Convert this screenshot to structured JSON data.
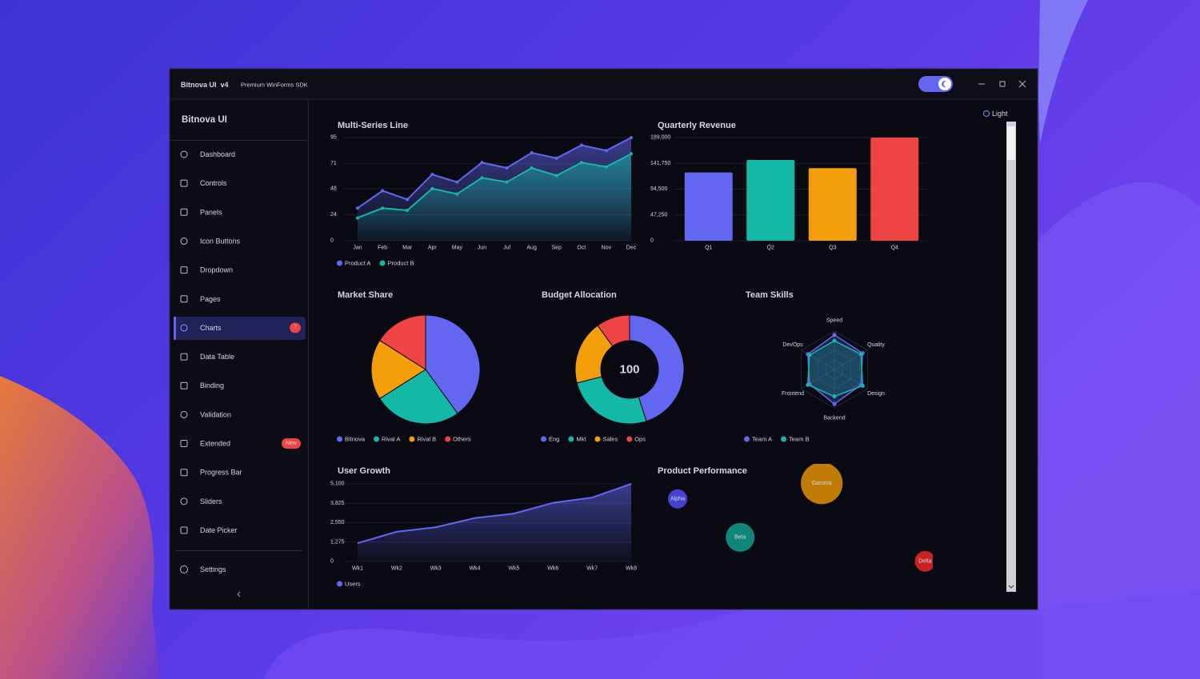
{
  "window": {
    "title": "Bitnova UI  v4",
    "subtitle": "Premium WinForms SDK",
    "theme_toggle": "Light"
  },
  "sidebar": {
    "title": "Bitnova UI",
    "items": [
      {
        "label": "Dashboard"
      },
      {
        "label": "Controls"
      },
      {
        "label": "Panels"
      },
      {
        "label": "Icon Buttons"
      },
      {
        "label": "Dropdown"
      },
      {
        "label": "Pages"
      },
      {
        "label": "Charts",
        "badge": "7",
        "active": true
      },
      {
        "label": "Data Table"
      },
      {
        "label": "Binding"
      },
      {
        "label": "Validation"
      },
      {
        "label": "Extended",
        "badge": "New"
      },
      {
        "label": "Progress Bar"
      },
      {
        "label": "Sliders"
      },
      {
        "label": "Date Picker"
      }
    ],
    "footer": {
      "label": "Settings"
    }
  },
  "chart_data": [
    {
      "type": "line",
      "title": "Multi-Series Line",
      "categories": [
        "Jan",
        "Feb",
        "Mar",
        "Apr",
        "May",
        "Jun",
        "Jul",
        "Aug",
        "Sep",
        "Oct",
        "Nov",
        "Dec"
      ],
      "series": [
        {
          "name": "Product A",
          "color": "#6366f1",
          "values": [
            30,
            46,
            38,
            61,
            54,
            72,
            67,
            81,
            76,
            88,
            83,
            95
          ]
        },
        {
          "name": "Product B",
          "color": "#14b8a6",
          "values": [
            21,
            30,
            28,
            48,
            43,
            58,
            54,
            67,
            60,
            72,
            68,
            80
          ]
        }
      ],
      "ylim": [
        0,
        95
      ],
      "yticks": [
        0,
        24,
        48,
        71,
        95
      ],
      "grid": true,
      "markers": true
    },
    {
      "type": "bar",
      "title": "Quarterly Revenue",
      "categories": [
        "Q1",
        "Q2",
        "Q3",
        "Q4"
      ],
      "values": [
        125000,
        148000,
        133000,
        189000
      ],
      "colors": [
        "#6366f1",
        "#14b8a6",
        "#f59e0b",
        "#ef4444"
      ],
      "ylim": [
        0,
        189000
      ],
      "yticks": [
        0,
        {
          "value": 47250,
          "label": "47,250"
        },
        {
          "value": 94500,
          "label": "94,500"
        },
        {
          "value": 141750,
          "label": "141,750"
        },
        {
          "value": 189000,
          "label": "189,000"
        }
      ],
      "grid": true
    },
    {
      "type": "pie",
      "title": "Market Share",
      "categories": [
        "Bitnova",
        "Rival A",
        "Rival B",
        "Others"
      ],
      "values": [
        40,
        26,
        18,
        16
      ],
      "colors": [
        "#6366f1",
        "#14b8a6",
        "#f59e0b",
        "#ef4444"
      ]
    },
    {
      "type": "donut",
      "title": "Budget Allocation",
      "categories": [
        "Eng",
        "Mkt",
        "Sales",
        "Ops"
      ],
      "values": [
        45,
        26,
        19,
        10
      ],
      "colors": [
        "#6366f1",
        "#14b8a6",
        "#f59e0b",
        "#ef4444"
      ],
      "center_value": 100
    },
    {
      "type": "radar",
      "title": "Team Skills",
      "categories": [
        "Speed",
        "Quality",
        "Design",
        "Backend",
        "Frontend",
        "DevOps"
      ],
      "series": [
        {
          "name": "Team A",
          "color": "#6366f1",
          "values": [
            90,
            85,
            80,
            90,
            75,
            80
          ]
        },
        {
          "name": "Team B",
          "color": "#14b8a6",
          "values": [
            75,
            80,
            85,
            70,
            80,
            75
          ]
        }
      ],
      "rlim": [
        0,
        100
      ]
    },
    {
      "type": "area",
      "title": "User Growth",
      "categories": [
        "Wk1",
        "Wk2",
        "Wk3",
        "Wk4",
        "Wk5",
        "Wk6",
        "Wk7",
        "Wk8"
      ],
      "series": [
        {
          "name": "Users",
          "color": "#6366f1",
          "values": [
            1200,
            1950,
            2250,
            2850,
            3150,
            3850,
            4200,
            5100
          ]
        }
      ],
      "ylim": [
        0,
        5100
      ],
      "yticks": [
        0,
        {
          "value": 1275,
          "label": "1,275"
        },
        {
          "value": 2550,
          "label": "2,550"
        },
        {
          "value": 3825,
          "label": "3,825"
        },
        {
          "value": 5100,
          "label": "5,100"
        }
      ],
      "grid": true
    },
    {
      "type": "bubble",
      "title": "Product Performance",
      "points": [
        {
          "name": "Alpha",
          "color": "#4f46e5",
          "x": 5,
          "y": 74,
          "size": 40
        },
        {
          "name": "Beta",
          "color": "#0f9488",
          "x": 28,
          "y": 37,
          "size": 60
        },
        {
          "name": "Gamma",
          "color": "#d48806",
          "x": 58,
          "y": 89,
          "size": 87
        },
        {
          "name": "Delta",
          "color": "#dc2626",
          "x": 96,
          "y": 14,
          "size": 43
        }
      ],
      "xlim": [
        0,
        100
      ],
      "ylim": [
        0,
        100
      ]
    }
  ]
}
